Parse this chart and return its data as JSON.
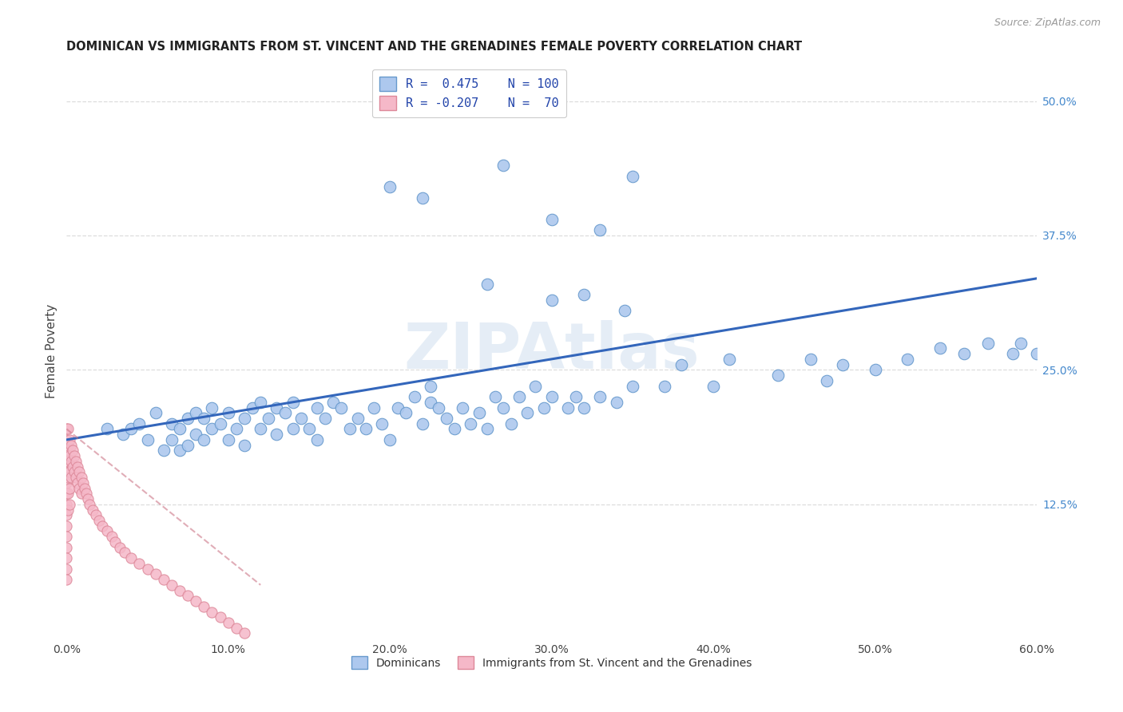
{
  "title": "DOMINICAN VS IMMIGRANTS FROM ST. VINCENT AND THE GRENADINES FEMALE POVERTY CORRELATION CHART",
  "source": "Source: ZipAtlas.com",
  "ylabel": "Female Poverty",
  "xlim": [
    0.0,
    0.6
  ],
  "ylim": [
    0.0,
    0.535
  ],
  "xtick_vals": [
    0.0,
    0.1,
    0.2,
    0.3,
    0.4,
    0.5,
    0.6
  ],
  "xtick_labels": [
    "0.0%",
    "10.0%",
    "20.0%",
    "30.0%",
    "40.0%",
    "50.0%",
    "60.0%"
  ],
  "ytick_right_vals": [
    0.125,
    0.25,
    0.375,
    0.5
  ],
  "ytick_right_labels": [
    "12.5%",
    "25.0%",
    "37.5%",
    "50.0%"
  ],
  "blue_color": "#adc8ee",
  "blue_edge_color": "#6699cc",
  "pink_color": "#f5b8c8",
  "pink_edge_color": "#dd8899",
  "trend_blue_color": "#3366bb",
  "trend_pink_color": "#cc7788",
  "blue_trend_x0": 0.0,
  "blue_trend_y0": 0.185,
  "blue_trend_x1": 0.6,
  "blue_trend_y1": 0.335,
  "pink_trend_x0": 0.0,
  "pink_trend_y0": 0.195,
  "pink_trend_x1": 0.12,
  "pink_trend_y1": 0.05,
  "watermark": "ZIPAtlas",
  "background_color": "#ffffff",
  "grid_color": "#dddddd",
  "right_tick_color": "#4488cc",
  "legend1_r": "R =  0.475",
  "legend1_n": "N = 100",
  "legend2_r": "R = -0.207",
  "legend2_n": "N =  70",
  "legend1_label": "R =  0.475    N = 100",
  "legend2_label": "R = -0.207    N =  70",
  "bottom_label1": "Dominicans",
  "bottom_label2": "Immigrants from St. Vincent and the Grenadines",
  "blue_x": [
    0.025,
    0.035,
    0.04,
    0.045,
    0.05,
    0.055,
    0.06,
    0.065,
    0.065,
    0.07,
    0.07,
    0.075,
    0.075,
    0.08,
    0.08,
    0.085,
    0.085,
    0.09,
    0.09,
    0.095,
    0.1,
    0.1,
    0.105,
    0.11,
    0.11,
    0.115,
    0.12,
    0.12,
    0.125,
    0.13,
    0.13,
    0.135,
    0.14,
    0.14,
    0.145,
    0.15,
    0.155,
    0.155,
    0.16,
    0.165,
    0.17,
    0.175,
    0.18,
    0.185,
    0.19,
    0.195,
    0.2,
    0.205,
    0.21,
    0.215,
    0.22,
    0.225,
    0.225,
    0.23,
    0.235,
    0.24,
    0.245,
    0.25,
    0.255,
    0.26,
    0.265,
    0.27,
    0.275,
    0.28,
    0.285,
    0.29,
    0.295,
    0.3,
    0.31,
    0.315,
    0.32,
    0.33,
    0.34,
    0.35,
    0.37,
    0.38,
    0.4,
    0.41,
    0.44,
    0.46,
    0.47,
    0.48,
    0.5,
    0.52,
    0.54,
    0.555,
    0.57,
    0.585,
    0.59,
    0.6,
    0.26,
    0.3,
    0.32,
    0.345,
    0.36,
    0.39,
    0.42,
    0.445,
    0.46,
    0.49
  ],
  "blue_y": [
    0.195,
    0.19,
    0.195,
    0.2,
    0.185,
    0.21,
    0.175,
    0.185,
    0.2,
    0.175,
    0.195,
    0.18,
    0.205,
    0.19,
    0.21,
    0.185,
    0.205,
    0.195,
    0.215,
    0.2,
    0.185,
    0.21,
    0.195,
    0.18,
    0.205,
    0.215,
    0.195,
    0.22,
    0.205,
    0.19,
    0.215,
    0.21,
    0.195,
    0.22,
    0.205,
    0.195,
    0.185,
    0.215,
    0.205,
    0.22,
    0.215,
    0.195,
    0.205,
    0.195,
    0.215,
    0.2,
    0.185,
    0.215,
    0.21,
    0.225,
    0.2,
    0.22,
    0.235,
    0.215,
    0.205,
    0.195,
    0.215,
    0.2,
    0.21,
    0.195,
    0.225,
    0.215,
    0.2,
    0.225,
    0.21,
    0.235,
    0.215,
    0.225,
    0.215,
    0.225,
    0.215,
    0.225,
    0.22,
    0.235,
    0.235,
    0.255,
    0.235,
    0.26,
    0.245,
    0.26,
    0.24,
    0.255,
    0.25,
    0.26,
    0.27,
    0.265,
    0.275,
    0.265,
    0.275,
    0.265,
    0.33,
    0.315,
    0.32,
    0.305,
    0.3,
    0.28,
    0.27,
    0.26,
    0.255,
    0.245
  ],
  "pink_x": [
    0.0,
    0.0,
    0.0,
    0.0,
    0.0,
    0.0,
    0.0,
    0.0,
    0.0,
    0.0,
    0.0,
    0.0,
    0.0,
    0.0,
    0.0,
    0.001,
    0.001,
    0.001,
    0.001,
    0.001,
    0.001,
    0.002,
    0.002,
    0.002,
    0.002,
    0.002,
    0.003,
    0.003,
    0.003,
    0.004,
    0.004,
    0.005,
    0.005,
    0.006,
    0.006,
    0.007,
    0.007,
    0.008,
    0.008,
    0.009,
    0.009,
    0.01,
    0.011,
    0.012,
    0.013,
    0.014,
    0.016,
    0.018,
    0.02,
    0.022,
    0.025,
    0.028,
    0.03,
    0.033,
    0.036,
    0.04,
    0.045,
    0.05,
    0.055,
    0.06,
    0.065,
    0.07,
    0.075,
    0.08,
    0.085,
    0.09,
    0.095,
    0.1,
    0.105,
    0.11
  ],
  "pink_y": [
    0.195,
    0.185,
    0.175,
    0.165,
    0.155,
    0.145,
    0.135,
    0.125,
    0.115,
    0.105,
    0.095,
    0.085,
    0.075,
    0.065,
    0.055,
    0.195,
    0.18,
    0.165,
    0.15,
    0.135,
    0.12,
    0.185,
    0.17,
    0.155,
    0.14,
    0.125,
    0.18,
    0.165,
    0.15,
    0.175,
    0.16,
    0.17,
    0.155,
    0.165,
    0.15,
    0.16,
    0.145,
    0.155,
    0.14,
    0.15,
    0.135,
    0.145,
    0.14,
    0.135,
    0.13,
    0.125,
    0.12,
    0.115,
    0.11,
    0.105,
    0.1,
    0.095,
    0.09,
    0.085,
    0.08,
    0.075,
    0.07,
    0.065,
    0.06,
    0.055,
    0.05,
    0.045,
    0.04,
    0.035,
    0.03,
    0.025,
    0.02,
    0.015,
    0.01,
    0.005
  ]
}
